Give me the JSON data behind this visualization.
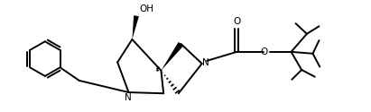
{
  "background": "#ffffff",
  "line_color": "#000000",
  "line_width": 1.4,
  "text_color": "#000000",
  "font_size": 7.5,
  "fig_width": 4.11,
  "fig_height": 1.25,
  "dpi": 100,
  "xlim": [
    0,
    10.5
  ],
  "ylim": [
    0,
    3.2
  ]
}
